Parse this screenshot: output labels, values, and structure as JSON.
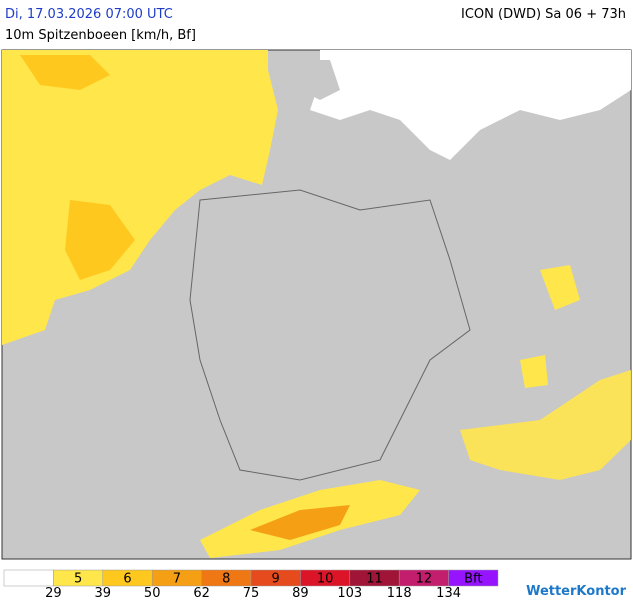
{
  "header": {
    "date": "Di, 17.03.2026 07:00 UTC",
    "model": "ICON (DWD) Sa 06 + 73h",
    "subtitle": "10m Spitzenboeen [km/h, Bf]"
  },
  "legend": {
    "items": [
      {
        "label": null,
        "color": "#ffffff"
      },
      {
        "label": "5",
        "color": "#ffe64b"
      },
      {
        "label": "6",
        "color": "#ffc81e"
      },
      {
        "label": "7",
        "color": "#f5a014"
      },
      {
        "label": "8",
        "color": "#f07814"
      },
      {
        "label": "9",
        "color": "#e64b1e"
      },
      {
        "label": "10",
        "color": "#dc1428"
      },
      {
        "label": "11",
        "color": "#a01437"
      },
      {
        "label": "12",
        "color": "#c31e6e"
      },
      {
        "label": "Bft",
        "color": "#9614ff"
      }
    ],
    "thresholds": [
      "29",
      "39",
      "50",
      "62",
      "75",
      "89",
      "103",
      "118",
      "134"
    ]
  },
  "brand": "WetterKontor"
}
